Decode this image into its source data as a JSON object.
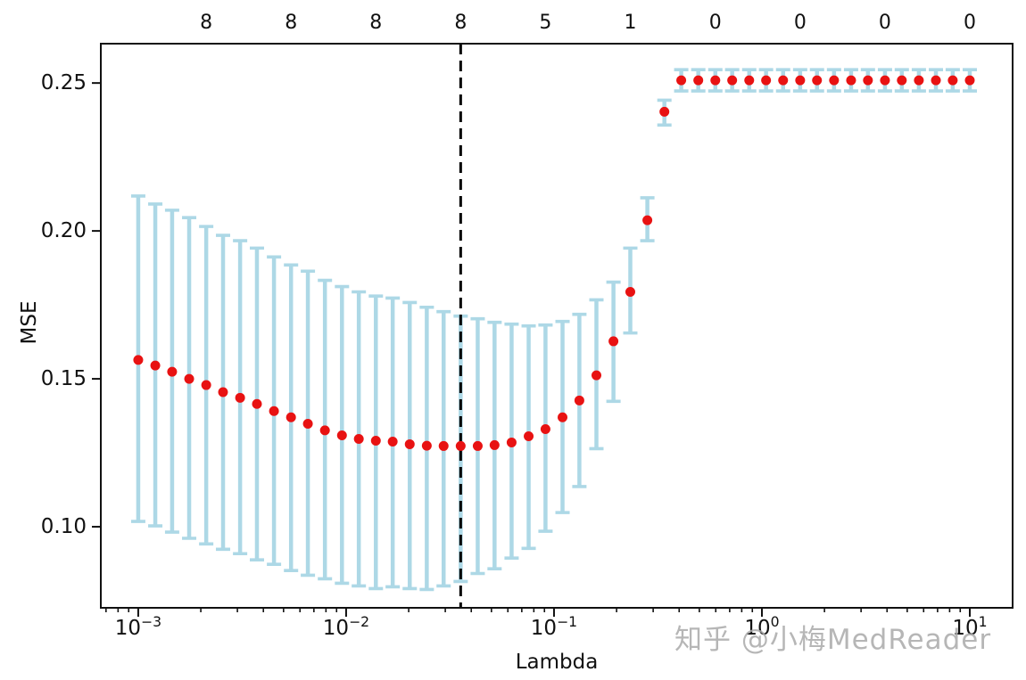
{
  "figure": {
    "watermark": "知乎 @小梅MedReader"
  },
  "chart_data": {
    "type": "scatter",
    "title": "",
    "xlabel": "Lambda",
    "ylabel": "MSE",
    "x_scale": "log10",
    "grid": false,
    "legend": null,
    "xlim_log10": [
      -3.18,
      1.206
    ],
    "ylim": [
      0.0726,
      0.2633
    ],
    "y_ticks": [
      {
        "value": 0.25,
        "label": "0.25"
      },
      {
        "value": 0.2,
        "label": "0.20"
      },
      {
        "value": 0.15,
        "label": "0.15"
      },
      {
        "value": 0.1,
        "label": "0.10"
      }
    ],
    "x_major_ticks": [
      {
        "log10": -3,
        "mantissa": "10",
        "exponent": "−3"
      },
      {
        "log10": -2,
        "mantissa": "10",
        "exponent": "−2"
      },
      {
        "log10": -1,
        "mantissa": "10",
        "exponent": "−1"
      },
      {
        "log10": 0,
        "mantissa": "10",
        "exponent": "0"
      },
      {
        "log10": 1,
        "mantissa": "10",
        "exponent": "1"
      }
    ],
    "x_minor_ticks_log10": [
      -3.155,
      -3.097,
      -3.046,
      -2.699,
      -2.523,
      -2.398,
      -2.301,
      -2.222,
      -2.155,
      -2.097,
      -2.046,
      -1.699,
      -1.523,
      -1.398,
      -1.301,
      -1.222,
      -1.155,
      -1.097,
      -1.046,
      -0.699,
      -0.523,
      -0.398,
      -0.301,
      -0.222,
      -0.155,
      -0.097,
      -0.046,
      0.301,
      0.477,
      0.602,
      0.699,
      0.778,
      0.845,
      0.903,
      0.954
    ],
    "top_axis_labels": [
      {
        "log10": -2.673,
        "text": "8"
      },
      {
        "log10": -2.265,
        "text": "8"
      },
      {
        "log10": -1.857,
        "text": "8"
      },
      {
        "log10": -1.449,
        "text": "8"
      },
      {
        "log10": -1.041,
        "text": "5"
      },
      {
        "log10": -0.633,
        "text": "1"
      },
      {
        "log10": -0.224,
        "text": "0"
      },
      {
        "log10": 0.184,
        "text": "0"
      },
      {
        "log10": 0.592,
        "text": "0"
      },
      {
        "log10": 1.0,
        "text": "0"
      }
    ],
    "vline": {
      "log10": -1.449,
      "style": "dashed",
      "color": "#000000"
    },
    "colors": {
      "marker": "#e81212",
      "errorbar": "#add8e6",
      "axis": "#111111",
      "watermark": "#aaaaaa"
    },
    "series": [
      {
        "name": "cv-mse-vs-lambda",
        "point_format": [
          "log10_lambda",
          "mse",
          "err_low",
          "err_high"
        ],
        "points": [
          [
            -3.0,
            0.1564,
            0.1018,
            0.2118
          ],
          [
            -2.918,
            0.1545,
            0.1003,
            0.2091
          ],
          [
            -2.837,
            0.1524,
            0.0982,
            0.207
          ],
          [
            -2.755,
            0.15,
            0.0961,
            0.2045
          ],
          [
            -2.673,
            0.1479,
            0.0942,
            0.2015
          ],
          [
            -2.592,
            0.1455,
            0.0924,
            0.1985
          ],
          [
            -2.51,
            0.1436,
            0.0909,
            0.1967
          ],
          [
            -2.429,
            0.1415,
            0.0888,
            0.1942
          ],
          [
            -2.347,
            0.1391,
            0.0873,
            0.1912
          ],
          [
            -2.265,
            0.137,
            0.0852,
            0.1885
          ],
          [
            -2.184,
            0.1348,
            0.0836,
            0.1864
          ],
          [
            -2.102,
            0.1326,
            0.0824,
            0.1833
          ],
          [
            -2.02,
            0.1309,
            0.0809,
            0.1812
          ],
          [
            -1.939,
            0.1297,
            0.08,
            0.1794
          ],
          [
            -1.857,
            0.1291,
            0.0791,
            0.178
          ],
          [
            -1.776,
            0.1288,
            0.0797,
            0.1773
          ],
          [
            -1.694,
            0.1279,
            0.0791,
            0.1758
          ],
          [
            -1.612,
            0.1274,
            0.0788,
            0.1742
          ],
          [
            -1.531,
            0.1273,
            0.08,
            0.1727
          ],
          [
            -1.449,
            0.1273,
            0.0815,
            0.1712
          ],
          [
            -1.367,
            0.1273,
            0.0842,
            0.1703
          ],
          [
            -1.286,
            0.1276,
            0.0858,
            0.1691
          ],
          [
            -1.204,
            0.1285,
            0.0894,
            0.1685
          ],
          [
            -1.122,
            0.1306,
            0.0927,
            0.1679
          ],
          [
            -1.041,
            0.133,
            0.0985,
            0.1682
          ],
          [
            -0.959,
            0.137,
            0.1048,
            0.1694
          ],
          [
            -0.878,
            0.1427,
            0.1136,
            0.1718
          ],
          [
            -0.796,
            0.1512,
            0.1264,
            0.1767
          ],
          [
            -0.714,
            0.1627,
            0.1424,
            0.1827
          ],
          [
            -0.633,
            0.1794,
            0.1655,
            0.1942
          ],
          [
            -0.551,
            0.2036,
            0.1967,
            0.2112
          ],
          [
            -0.469,
            0.2403,
            0.2358,
            0.2442
          ],
          [
            -0.388,
            0.2509,
            0.2473,
            0.2545
          ],
          [
            -0.306,
            0.2509,
            0.2473,
            0.2545
          ],
          [
            -0.224,
            0.2509,
            0.2473,
            0.2545
          ],
          [
            -0.143,
            0.2509,
            0.2473,
            0.2545
          ],
          [
            -0.061,
            0.2509,
            0.2473,
            0.2545
          ],
          [
            0.02,
            0.2509,
            0.2473,
            0.2545
          ],
          [
            0.102,
            0.2509,
            0.2473,
            0.2545
          ],
          [
            0.184,
            0.2509,
            0.2473,
            0.2545
          ],
          [
            0.265,
            0.2509,
            0.2473,
            0.2545
          ],
          [
            0.347,
            0.2509,
            0.2473,
            0.2545
          ],
          [
            0.429,
            0.2509,
            0.2473,
            0.2545
          ],
          [
            0.51,
            0.2509,
            0.2473,
            0.2545
          ],
          [
            0.592,
            0.2509,
            0.2473,
            0.2545
          ],
          [
            0.673,
            0.2509,
            0.2473,
            0.2545
          ],
          [
            0.755,
            0.2509,
            0.2473,
            0.2545
          ],
          [
            0.837,
            0.2509,
            0.2473,
            0.2545
          ],
          [
            0.918,
            0.2509,
            0.2473,
            0.2545
          ],
          [
            1.0,
            0.2509,
            0.2473,
            0.2545
          ]
        ]
      }
    ]
  }
}
